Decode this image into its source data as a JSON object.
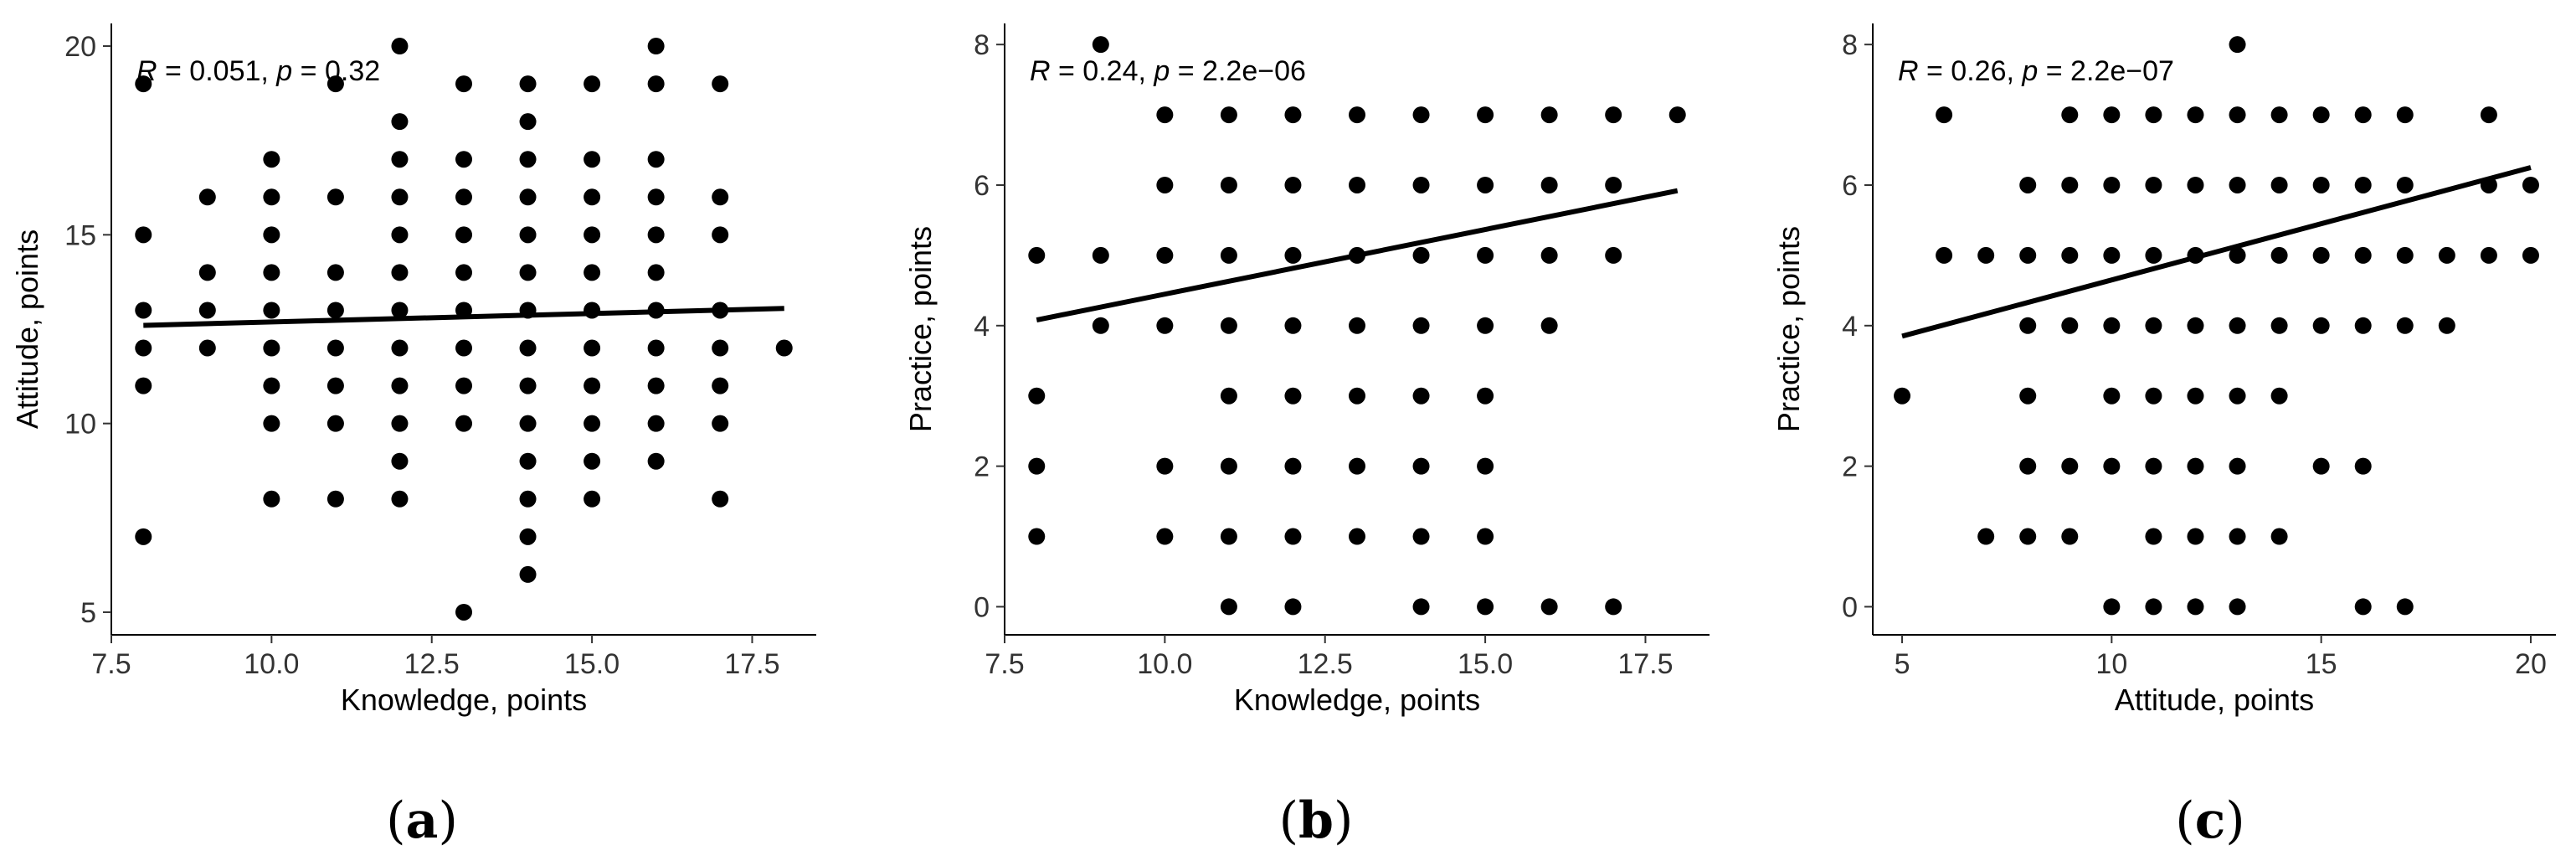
{
  "chart_data": [
    {
      "type": "scatter",
      "panel_label": "a",
      "xlabel": "Knowledge, points",
      "ylabel": "Attitude, points",
      "xlim": [
        7.5,
        18.5
      ],
      "ylim": [
        4.4,
        20.6
      ],
      "xticks": [
        "7.5",
        "10.0",
        "12.5",
        "15.0",
        "17.5"
      ],
      "yticks": [
        "5",
        "10",
        "15",
        "20"
      ],
      "annotation": {
        "r_label": "R",
        "r_value": " = 0.051, ",
        "p_label": "p",
        "p_value": " = 0.32"
      },
      "regression": {
        "x": [
          8,
          18
        ],
        "y": [
          12.6,
          13.05
        ]
      },
      "points": [
        [
          8,
          19
        ],
        [
          8,
          15
        ],
        [
          8,
          13
        ],
        [
          8,
          12
        ],
        [
          8,
          11
        ],
        [
          8,
          7
        ],
        [
          9,
          16
        ],
        [
          9,
          14
        ],
        [
          9,
          13
        ],
        [
          9,
          12
        ],
        [
          10,
          17
        ],
        [
          10,
          16
        ],
        [
          10,
          15
        ],
        [
          10,
          14
        ],
        [
          10,
          13
        ],
        [
          10,
          12
        ],
        [
          10,
          11
        ],
        [
          10,
          10
        ],
        [
          10,
          8
        ],
        [
          11,
          19
        ],
        [
          11,
          16
        ],
        [
          11,
          14
        ],
        [
          11,
          13
        ],
        [
          11,
          12
        ],
        [
          11,
          11
        ],
        [
          11,
          10
        ],
        [
          11,
          8
        ],
        [
          12,
          20
        ],
        [
          12,
          18
        ],
        [
          12,
          17
        ],
        [
          12,
          16
        ],
        [
          12,
          15
        ],
        [
          12,
          14
        ],
        [
          12,
          13
        ],
        [
          12,
          12
        ],
        [
          12,
          11
        ],
        [
          12,
          10
        ],
        [
          12,
          9
        ],
        [
          12,
          8
        ],
        [
          13,
          19
        ],
        [
          13,
          17
        ],
        [
          13,
          16
        ],
        [
          13,
          15
        ],
        [
          13,
          14
        ],
        [
          13,
          13
        ],
        [
          13,
          12
        ],
        [
          13,
          11
        ],
        [
          13,
          10
        ],
        [
          13,
          5
        ],
        [
          14,
          19
        ],
        [
          14,
          18
        ],
        [
          14,
          17
        ],
        [
          14,
          16
        ],
        [
          14,
          15
        ],
        [
          14,
          14
        ],
        [
          14,
          13
        ],
        [
          14,
          12
        ],
        [
          14,
          11
        ],
        [
          14,
          10
        ],
        [
          14,
          9
        ],
        [
          14,
          8
        ],
        [
          14,
          7
        ],
        [
          14,
          6
        ],
        [
          15,
          19
        ],
        [
          15,
          17
        ],
        [
          15,
          16
        ],
        [
          15,
          15
        ],
        [
          15,
          14
        ],
        [
          15,
          13
        ],
        [
          15,
          12
        ],
        [
          15,
          11
        ],
        [
          15,
          10
        ],
        [
          15,
          9
        ],
        [
          15,
          8
        ],
        [
          16,
          20
        ],
        [
          16,
          19
        ],
        [
          16,
          17
        ],
        [
          16,
          16
        ],
        [
          16,
          15
        ],
        [
          16,
          14
        ],
        [
          16,
          13
        ],
        [
          16,
          12
        ],
        [
          16,
          11
        ],
        [
          16,
          10
        ],
        [
          16,
          9
        ],
        [
          17,
          19
        ],
        [
          17,
          16
        ],
        [
          17,
          15
        ],
        [
          17,
          13
        ],
        [
          17,
          12
        ],
        [
          17,
          11
        ],
        [
          17,
          10
        ],
        [
          17,
          8
        ],
        [
          18,
          12
        ]
      ]
    },
    {
      "type": "scatter",
      "panel_label": "b",
      "xlabel": "Knowledge, points",
      "ylabel": "Practice, points",
      "xlim": [
        7.5,
        18.5
      ],
      "ylim": [
        -0.4,
        8.3
      ],
      "xticks": [
        "7.5",
        "10.0",
        "12.5",
        "15.0",
        "17.5"
      ],
      "yticks": [
        "0",
        "2",
        "4",
        "6",
        "8"
      ],
      "annotation": {
        "r_label": "R",
        "r_value": " = 0.24, ",
        "p_label": "p",
        "p_value": " = 2.2e−06"
      },
      "regression": {
        "x": [
          8,
          18
        ],
        "y": [
          4.08,
          5.92
        ]
      },
      "points": [
        [
          8,
          5
        ],
        [
          8,
          3
        ],
        [
          8,
          2
        ],
        [
          8,
          1
        ],
        [
          9,
          8
        ],
        [
          9,
          5
        ],
        [
          9,
          4
        ],
        [
          10,
          7
        ],
        [
          10,
          6
        ],
        [
          10,
          5
        ],
        [
          10,
          4
        ],
        [
          10,
          2
        ],
        [
          10,
          1
        ],
        [
          11,
          7
        ],
        [
          11,
          6
        ],
        [
          11,
          5
        ],
        [
          11,
          4
        ],
        [
          11,
          3
        ],
        [
          11,
          2
        ],
        [
          11,
          1
        ],
        [
          11,
          0
        ],
        [
          12,
          7
        ],
        [
          12,
          6
        ],
        [
          12,
          5
        ],
        [
          12,
          4
        ],
        [
          12,
          3
        ],
        [
          12,
          2
        ],
        [
          12,
          1
        ],
        [
          12,
          0
        ],
        [
          13,
          7
        ],
        [
          13,
          6
        ],
        [
          13,
          5
        ],
        [
          13,
          4
        ],
        [
          13,
          3
        ],
        [
          13,
          2
        ],
        [
          13,
          1
        ],
        [
          14,
          7
        ],
        [
          14,
          6
        ],
        [
          14,
          5
        ],
        [
          14,
          4
        ],
        [
          14,
          3
        ],
        [
          14,
          2
        ],
        [
          14,
          1
        ],
        [
          14,
          0
        ],
        [
          15,
          7
        ],
        [
          15,
          6
        ],
        [
          15,
          5
        ],
        [
          15,
          4
        ],
        [
          15,
          3
        ],
        [
          15,
          2
        ],
        [
          15,
          1
        ],
        [
          15,
          0
        ],
        [
          16,
          7
        ],
        [
          16,
          6
        ],
        [
          16,
          5
        ],
        [
          16,
          4
        ],
        [
          16,
          0
        ],
        [
          17,
          7
        ],
        [
          17,
          6
        ],
        [
          17,
          5
        ],
        [
          17,
          0
        ],
        [
          18,
          7
        ]
      ]
    },
    {
      "type": "scatter",
      "panel_label": "c",
      "xlabel": "Attitude, points",
      "ylabel": "Practice, points",
      "xlim": [
        4.3,
        20.6
      ],
      "ylim": [
        -0.4,
        8.3
      ],
      "xticks": [
        "5",
        "10",
        "15",
        "20"
      ],
      "yticks": [
        "0",
        "2",
        "4",
        "6",
        "8"
      ],
      "annotation": {
        "r_label": "R",
        "r_value": " = 0.26, ",
        "p_label": "p",
        "p_value": " = 2.2e−07"
      },
      "regression": {
        "x": [
          5,
          20
        ],
        "y": [
          3.85,
          6.25
        ]
      },
      "points": [
        [
          5,
          3
        ],
        [
          6,
          7
        ],
        [
          6,
          5
        ],
        [
          7,
          5
        ],
        [
          7,
          1
        ],
        [
          8,
          6
        ],
        [
          8,
          5
        ],
        [
          8,
          4
        ],
        [
          8,
          3
        ],
        [
          8,
          2
        ],
        [
          8,
          1
        ],
        [
          9,
          7
        ],
        [
          9,
          6
        ],
        [
          9,
          5
        ],
        [
          9,
          4
        ],
        [
          9,
          2
        ],
        [
          9,
          1
        ],
        [
          10,
          7
        ],
        [
          10,
          6
        ],
        [
          10,
          5
        ],
        [
          10,
          4
        ],
        [
          10,
          3
        ],
        [
          10,
          2
        ],
        [
          10,
          0
        ],
        [
          11,
          7
        ],
        [
          11,
          6
        ],
        [
          11,
          5
        ],
        [
          11,
          4
        ],
        [
          11,
          3
        ],
        [
          11,
          2
        ],
        [
          11,
          1
        ],
        [
          11,
          0
        ],
        [
          12,
          7
        ],
        [
          12,
          6
        ],
        [
          12,
          5
        ],
        [
          12,
          4
        ],
        [
          12,
          3
        ],
        [
          12,
          2
        ],
        [
          12,
          1
        ],
        [
          12,
          0
        ],
        [
          13,
          8
        ],
        [
          13,
          7
        ],
        [
          13,
          6
        ],
        [
          13,
          5
        ],
        [
          13,
          4
        ],
        [
          13,
          3
        ],
        [
          13,
          2
        ],
        [
          13,
          1
        ],
        [
          13,
          0
        ],
        [
          14,
          7
        ],
        [
          14,
          6
        ],
        [
          14,
          5
        ],
        [
          14,
          4
        ],
        [
          14,
          3
        ],
        [
          14,
          1
        ],
        [
          15,
          7
        ],
        [
          15,
          6
        ],
        [
          15,
          5
        ],
        [
          15,
          4
        ],
        [
          15,
          2
        ],
        [
          16,
          7
        ],
        [
          16,
          6
        ],
        [
          16,
          5
        ],
        [
          16,
          4
        ],
        [
          16,
          2
        ],
        [
          16,
          0
        ],
        [
          17,
          7
        ],
        [
          17,
          6
        ],
        [
          17,
          5
        ],
        [
          17,
          4
        ],
        [
          17,
          0
        ],
        [
          18,
          5
        ],
        [
          18,
          4
        ],
        [
          19,
          7
        ],
        [
          19,
          6
        ],
        [
          19,
          5
        ],
        [
          20,
          6
        ],
        [
          20,
          5
        ]
      ]
    }
  ]
}
